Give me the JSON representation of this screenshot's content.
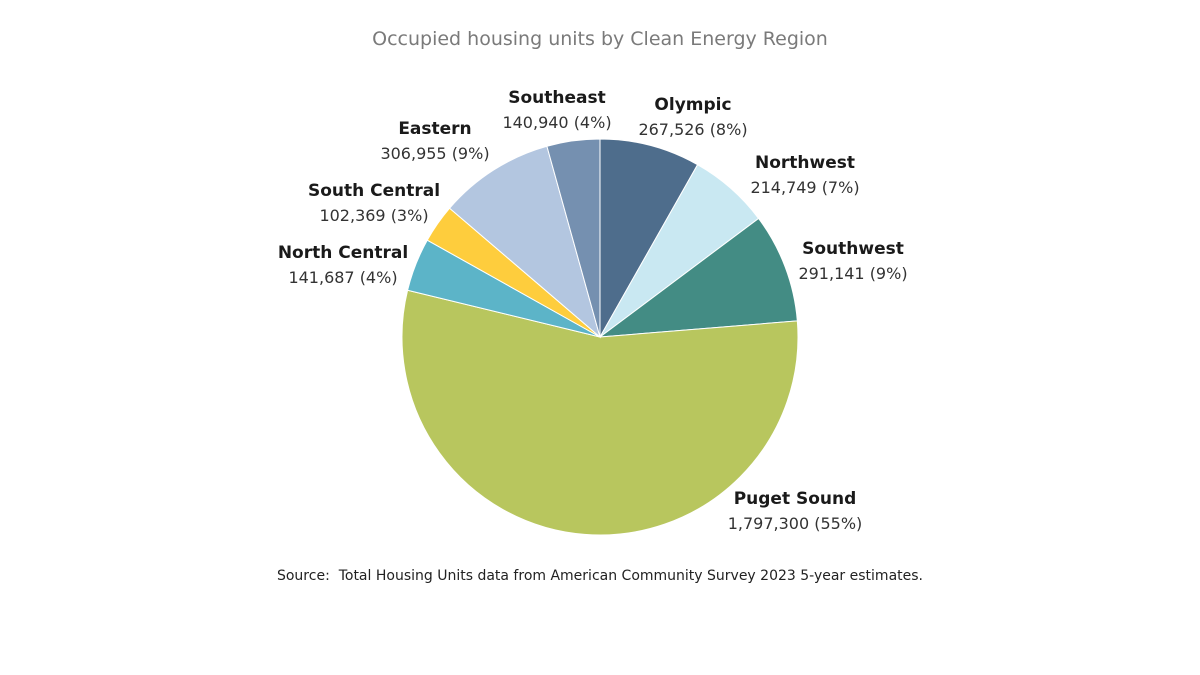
{
  "chart_data": {
    "type": "pie",
    "title": "Occupied housing units by Clean Energy Region",
    "slices": [
      {
        "name": "Olympic",
        "value": 267526,
        "percent": 8,
        "value_label": "267,526 (8%)",
        "color": "#4e6d8c"
      },
      {
        "name": "Northwest",
        "value": 214749,
        "percent": 7,
        "value_label": "214,749 (7%)",
        "color": "#c9e8f2"
      },
      {
        "name": "Southwest",
        "value": 291141,
        "percent": 9,
        "value_label": "291,141 (9%)",
        "color": "#438c84"
      },
      {
        "name": "Puget Sound",
        "value": 1797300,
        "percent": 55,
        "value_label": "1,797,300 (55%)",
        "color": "#b8c65e"
      },
      {
        "name": "North Central",
        "value": 141687,
        "percent": 4,
        "value_label": "141,687 (4%)",
        "color": "#5cb4c8"
      },
      {
        "name": "South Central",
        "value": 102369,
        "percent": 3,
        "value_label": "102,369 (3%)",
        "color": "#fecd3d"
      },
      {
        "name": "Eastern",
        "value": 306955,
        "percent": 9,
        "value_label": "306,955 (9%)",
        "color": "#b3c6e0"
      },
      {
        "name": "Southeast",
        "value": 140940,
        "percent": 4,
        "value_label": "140,940 (4%)",
        "color": "#7590b0"
      }
    ]
  },
  "source": {
    "label": "Source:",
    "text": "Total Housing Units data from American Community Survey 2023 5-year estimates."
  }
}
